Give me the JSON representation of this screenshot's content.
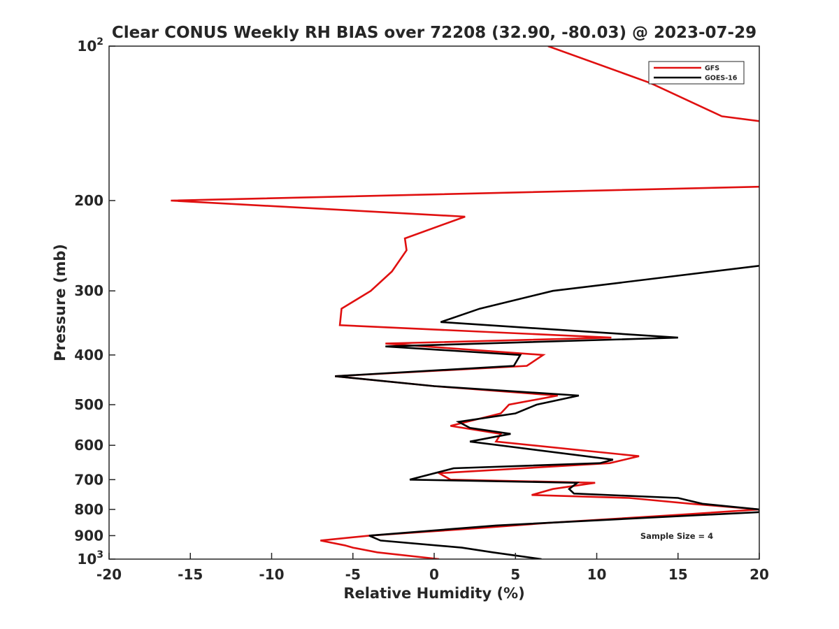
{
  "chart_data": {
    "type": "line",
    "title": "Clear CONUS Weekly RH BIAS over 72208 (32.90, -80.03) @ 2023-07-29",
    "xlabel": "Relative Humidity (%)",
    "ylabel": "Pressure (mb)",
    "xlim": [
      -20,
      20
    ],
    "ylim": [
      100,
      1000
    ],
    "y_scale": "log",
    "y_reversed": true,
    "grid": false,
    "legend_position": "top-right",
    "x_ticks": [
      "-20",
      "-15",
      "-10",
      "-5",
      "0",
      "5",
      "10",
      "15",
      "20"
    ],
    "y_ticks": [
      {
        "value": 100,
        "base": "10",
        "exp": "2"
      },
      {
        "value": 200,
        "label": "200"
      },
      {
        "value": 300,
        "label": "300"
      },
      {
        "value": 400,
        "label": "400"
      },
      {
        "value": 500,
        "label": "500"
      },
      {
        "value": 600,
        "label": "600"
      },
      {
        "value": 700,
        "label": "700"
      },
      {
        "value": 800,
        "label": "800"
      },
      {
        "value": 900,
        "label": "900"
      },
      {
        "value": 1000,
        "base": "10",
        "exp": "3"
      }
    ],
    "annotation": "Sample Size = 4",
    "series": [
      {
        "name": "GFS",
        "color": "#e01010",
        "points": [
          {
            "x": 7.0,
            "y": 100
          },
          {
            "x": 13.3,
            "y": 118
          },
          {
            "x": 17.7,
            "y": 137
          },
          {
            "x": 20.0,
            "y": 140
          },
          null,
          {
            "x": 20.0,
            "y": 188
          },
          {
            "x": -16.2,
            "y": 200
          },
          {
            "x": 1.9,
            "y": 215
          },
          {
            "x": -1.8,
            "y": 237
          },
          {
            "x": -1.7,
            "y": 250
          },
          {
            "x": -2.6,
            "y": 275
          },
          {
            "x": -3.9,
            "y": 300
          },
          {
            "x": -5.7,
            "y": 325
          },
          {
            "x": -5.8,
            "y": 350
          },
          {
            "x": 10.9,
            "y": 370
          },
          {
            "x": -3.0,
            "y": 380
          },
          {
            "x": 6.7,
            "y": 400
          },
          {
            "x": 5.7,
            "y": 420
          },
          {
            "x": -6.1,
            "y": 440
          },
          {
            "x": 0.0,
            "y": 460
          },
          {
            "x": 7.6,
            "y": 480
          },
          {
            "x": 4.6,
            "y": 500
          },
          {
            "x": 4.1,
            "y": 520
          },
          {
            "x": 1.0,
            "y": 550
          },
          {
            "x": 4.1,
            "y": 570
          },
          {
            "x": 3.8,
            "y": 590
          },
          {
            "x": 12.6,
            "y": 630
          },
          {
            "x": 10.8,
            "y": 650
          },
          {
            "x": 0.3,
            "y": 680
          },
          {
            "x": 1.0,
            "y": 700
          },
          {
            "x": 9.9,
            "y": 710
          },
          {
            "x": 7.3,
            "y": 730
          },
          {
            "x": 6.0,
            "y": 750
          },
          {
            "x": 12.0,
            "y": 760
          },
          {
            "x": 15.8,
            "y": 780
          },
          {
            "x": 20.0,
            "y": 800
          },
          {
            "x": 15.0,
            "y": 820
          },
          {
            "x": 7.0,
            "y": 850
          },
          {
            "x": 2.8,
            "y": 870
          },
          {
            "x": -4.0,
            "y": 900
          },
          {
            "x": -7.0,
            "y": 920
          },
          {
            "x": -5.5,
            "y": 940
          },
          {
            "x": -5.0,
            "y": 950
          },
          {
            "x": -3.5,
            "y": 970
          },
          {
            "x": 0.3,
            "y": 1000
          }
        ]
      },
      {
        "name": "GOES-16",
        "color": "#000000",
        "points": [
          {
            "x": 20.0,
            "y": 268
          },
          {
            "x": 7.3,
            "y": 300
          },
          {
            "x": 2.8,
            "y": 325
          },
          {
            "x": 0.4,
            "y": 345
          },
          {
            "x": 15.0,
            "y": 370
          },
          {
            "x": -3.0,
            "y": 385
          },
          {
            "x": 5.3,
            "y": 400
          },
          {
            "x": 4.9,
            "y": 420
          },
          {
            "x": -6.1,
            "y": 440
          },
          {
            "x": 0.0,
            "y": 460
          },
          {
            "x": 8.9,
            "y": 480
          },
          {
            "x": 6.3,
            "y": 500
          },
          {
            "x": 5.0,
            "y": 520
          },
          {
            "x": 1.5,
            "y": 540
          },
          {
            "x": 2.2,
            "y": 555
          },
          {
            "x": 4.7,
            "y": 570
          },
          {
            "x": 2.2,
            "y": 590
          },
          {
            "x": 11.0,
            "y": 640
          },
          {
            "x": 10.2,
            "y": 650
          },
          {
            "x": 1.2,
            "y": 665
          },
          {
            "x": -1.5,
            "y": 700
          },
          {
            "x": 8.8,
            "y": 710
          },
          {
            "x": 8.3,
            "y": 730
          },
          {
            "x": 8.6,
            "y": 745
          },
          {
            "x": 15.0,
            "y": 760
          },
          {
            "x": 16.5,
            "y": 780
          },
          {
            "x": 20.0,
            "y": 800
          },
          {
            "x": 20.0,
            "y": 810
          },
          {
            "x": 13.3,
            "y": 830
          },
          {
            "x": 3.8,
            "y": 860
          },
          {
            "x": -4.0,
            "y": 900
          },
          {
            "x": -3.3,
            "y": 920
          },
          {
            "x": 1.7,
            "y": 950
          },
          {
            "x": 3.6,
            "y": 970
          },
          {
            "x": 6.6,
            "y": 1000
          }
        ]
      }
    ]
  }
}
